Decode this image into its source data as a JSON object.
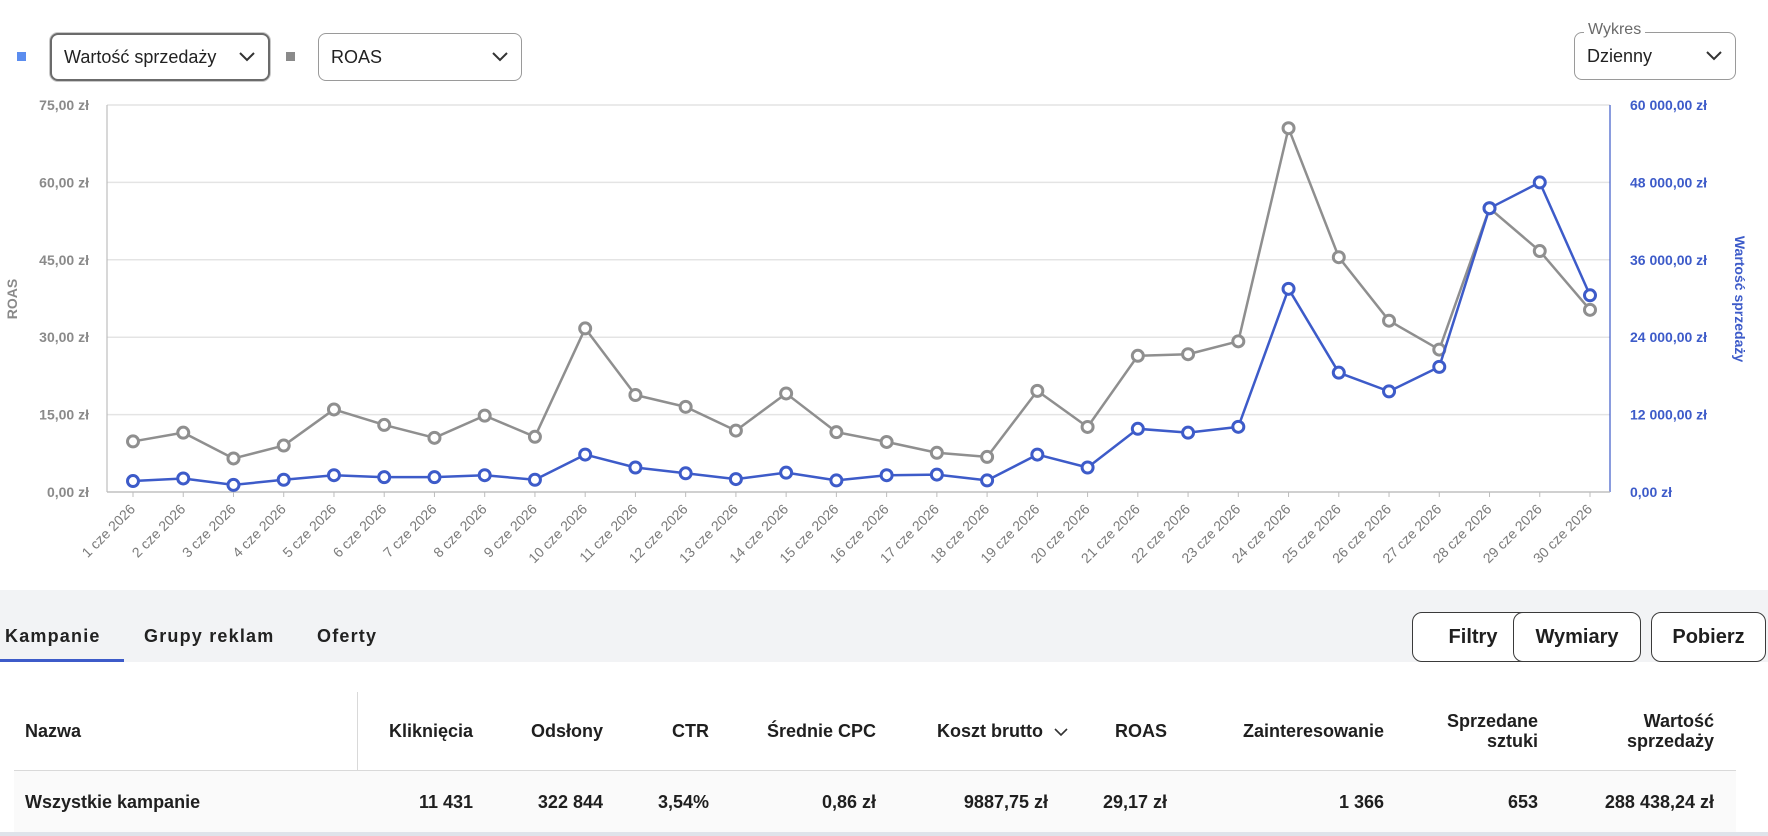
{
  "controls": {
    "left_select": {
      "value": "Wartość sprzedaży",
      "color": "#5b8def"
    },
    "right_select": {
      "value": "ROAS",
      "color": "#8a8a8a"
    },
    "chart_type": {
      "label": "Wykres",
      "value": "Dzienny"
    }
  },
  "chart_data": {
    "type": "line",
    "x": [
      "1 cze 2026",
      "2 cze 2026",
      "3 cze 2026",
      "4 cze 2026",
      "5 cze 2026",
      "6 cze 2026",
      "7 cze 2026",
      "8 cze 2026",
      "9 cze 2026",
      "10 cze 2026",
      "11 cze 2026",
      "12 cze 2026",
      "13 cze 2026",
      "14 cze 2026",
      "15 cze 2026",
      "16 cze 2026",
      "17 cze 2026",
      "18 cze 2026",
      "19 cze 2026",
      "20 cze 2026",
      "21 cze 2026",
      "22 cze 2026",
      "23 cze 2026",
      "24 cze 2026",
      "25 cze 2026",
      "26 cze 2026",
      "27 cze 2026",
      "28 cze 2026",
      "29 cze 2026",
      "30 cze 2026"
    ],
    "ylabel_left": "ROAS",
    "ylabel_right": "Wartość sprzedaży",
    "left_ticks": [
      "0,00 zł",
      "15,00 zł",
      "30,00 zł",
      "45,00 zł",
      "60,00 zł",
      "75,00 zł"
    ],
    "right_ticks": [
      "0,00 zł",
      "12 000,00 zł",
      "24 000,00 zł",
      "36 000,00 zł",
      "48 000,00 zł",
      "60 000,00 zł"
    ],
    "ylim_left": [
      0,
      75
    ],
    "ylim_right": [
      0,
      60000
    ],
    "grid": true,
    "series": [
      {
        "name": "ROAS",
        "axis": "left",
        "color": "#8f8f8f",
        "values": [
          9.8,
          11.5,
          6.5,
          9.0,
          16.0,
          13.0,
          10.5,
          14.8,
          10.7,
          31.7,
          18.8,
          16.5,
          11.9,
          19.1,
          11.6,
          9.7,
          7.6,
          6.8,
          19.6,
          12.6,
          26.4,
          26.7,
          29.2,
          70.5,
          45.5,
          33.2,
          27.6,
          55.0,
          46.7,
          35.3
        ]
      },
      {
        "name": "Wartość sprzedaży",
        "axis": "right",
        "color": "#3d5bc9",
        "values": [
          1700,
          2100,
          1100,
          1900,
          2600,
          2300,
          2300,
          2600,
          1900,
          5800,
          3800,
          2900,
          2000,
          3000,
          1800,
          2600,
          2700,
          1800,
          5800,
          3800,
          9800,
          9200,
          10100,
          31500,
          18500,
          15600,
          19400,
          44000,
          48000,
          30500
        ]
      }
    ]
  },
  "tabs": [
    {
      "label": "Kampanie",
      "active": true
    },
    {
      "label": "Grupy reklam",
      "active": false
    },
    {
      "label": "Oferty",
      "active": false
    }
  ],
  "buttons": {
    "filters": "Filtry",
    "dimensions": "Wymiary",
    "download": "Pobierz"
  },
  "table": {
    "headers": {
      "name": "Nazwa",
      "clicks": "Kliknięcia",
      "impressions": "Odsłony",
      "ctr": "CTR",
      "avg_cpc": "Średnie CPC",
      "cost": "Koszt brutto",
      "roas": "ROAS",
      "interest": "Zainteresowanie",
      "sold_1": "Sprzedane",
      "sold_2": "sztuki",
      "value_1": "Wartość",
      "value_2": "sprzedaży"
    },
    "row": {
      "name": "Wszystkie kampanie",
      "clicks": "11 431",
      "impressions": "322 844",
      "ctr": "3,54%",
      "avg_cpc": "0,86 zł",
      "cost": "9887,75 zł",
      "roas": "29,17 zł",
      "interest": "1 366",
      "sold": "653",
      "value": "288 438,24 zł"
    }
  }
}
